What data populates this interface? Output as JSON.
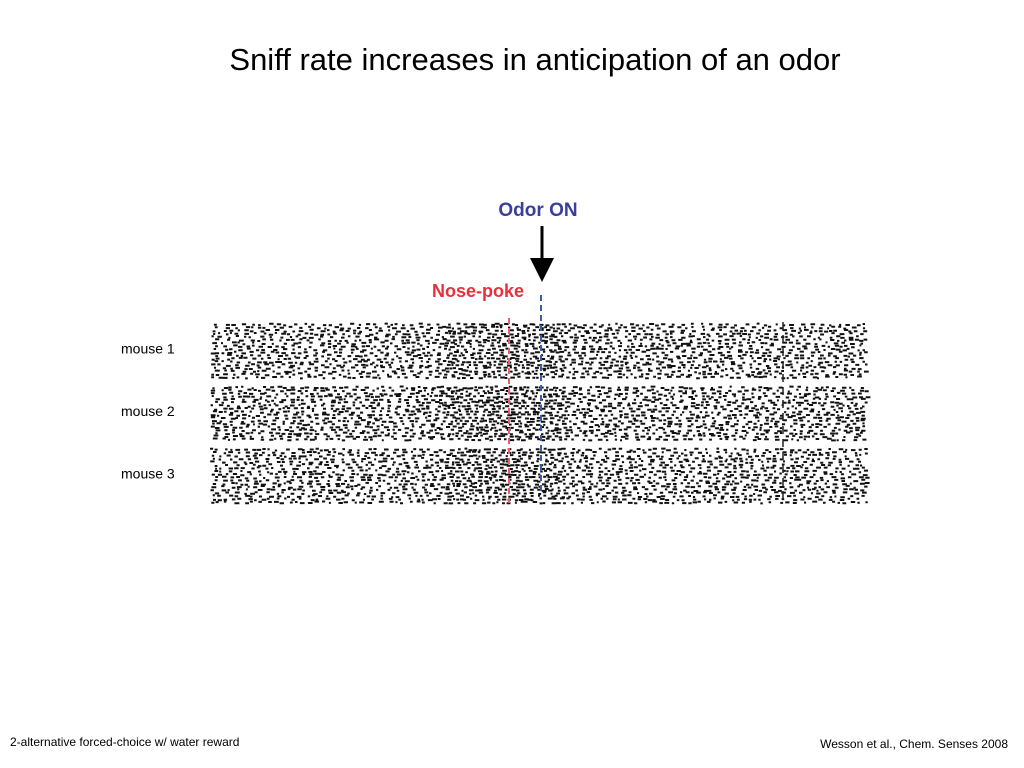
{
  "title": "Sniff rate increases in anticipation of an odor",
  "annotations": {
    "odor_on": "Odor ON",
    "nose_poke": "Nose-poke"
  },
  "rows": [
    "mouse 1",
    "mouse 2",
    "mouse 3"
  ],
  "footer": {
    "left": "2-alternative forced-choice w/ water reward",
    "right": "Wesson et al., Chem. Senses 2008"
  }
}
